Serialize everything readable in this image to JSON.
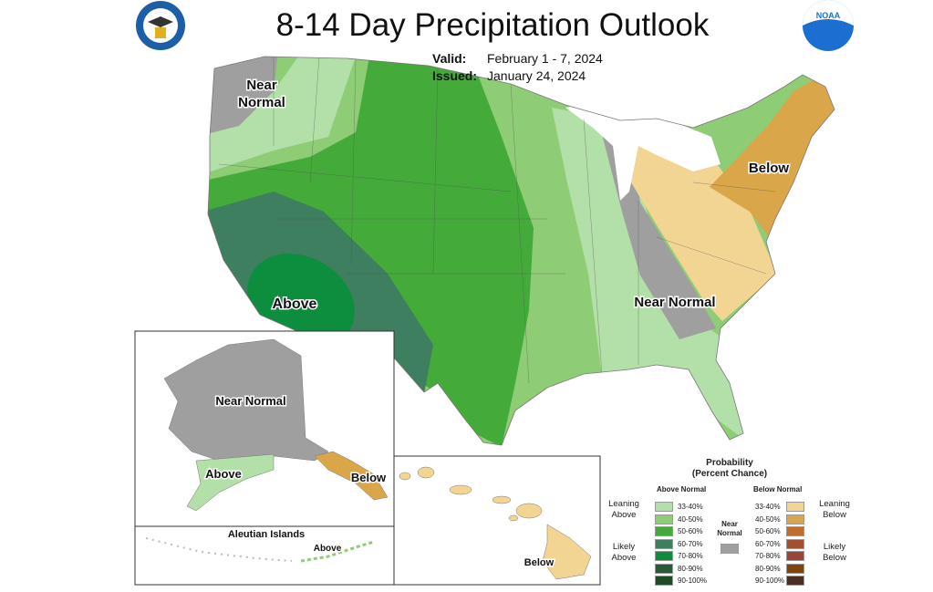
{
  "title": "8-14 Day Precipitation Outlook",
  "valid_label": "Valid:",
  "valid_value": "February 1 - 7, 2024",
  "issued_label": "Issued:",
  "issued_value": "January 24, 2024",
  "logos": {
    "left": "Department of Commerce seal",
    "right": "NOAA",
    "noaa_text": "NOAA"
  },
  "map_labels": {
    "conus_nw": "Near Normal",
    "conus_ne": "Below",
    "conus_se": "Near Normal",
    "conus_sw": "Above",
    "alaska_main": "Near Normal",
    "alaska_south": "Above",
    "alaska_panhandle": "Below",
    "aleutian_title": "Aleutian Islands",
    "aleutian_label": "Above",
    "hawaii_label": "Below"
  },
  "legend": {
    "title_line1": "Probability",
    "title_line2": "(Percent Chance)",
    "above_header": "Above Normal",
    "below_header": "Below Normal",
    "near_normal": "Near Normal",
    "near_color": "#a0a0a0",
    "leaning_above": "Leaning Above",
    "likely_above": "Likely Above",
    "leaning_below": "Leaning Below",
    "likely_below": "Likely Below",
    "above": [
      {
        "range": "33-40%",
        "color": "#b3dfa8"
      },
      {
        "range": "40-50%",
        "color": "#8fcc76"
      },
      {
        "range": "50-60%",
        "color": "#44aa3a"
      },
      {
        "range": "60-70%",
        "color": "#3d7f5e"
      },
      {
        "range": "70-80%",
        "color": "#0c8e3e"
      },
      {
        "range": "80-90%",
        "color": "#285a3a"
      },
      {
        "range": "90-100%",
        "color": "#1f4a26"
      }
    ],
    "below": [
      {
        "range": "33-40%",
        "color": "#f2d592"
      },
      {
        "range": "40-50%",
        "color": "#daa64a"
      },
      {
        "range": "50-60%",
        "color": "#c06d2f"
      },
      {
        "range": "60-70%",
        "color": "#a44f2e"
      },
      {
        "range": "70-80%",
        "color": "#974538"
      },
      {
        "range": "80-90%",
        "color": "#7d4307"
      },
      {
        "range": "90-100%",
        "color": "#4a2e24"
      }
    ]
  }
}
